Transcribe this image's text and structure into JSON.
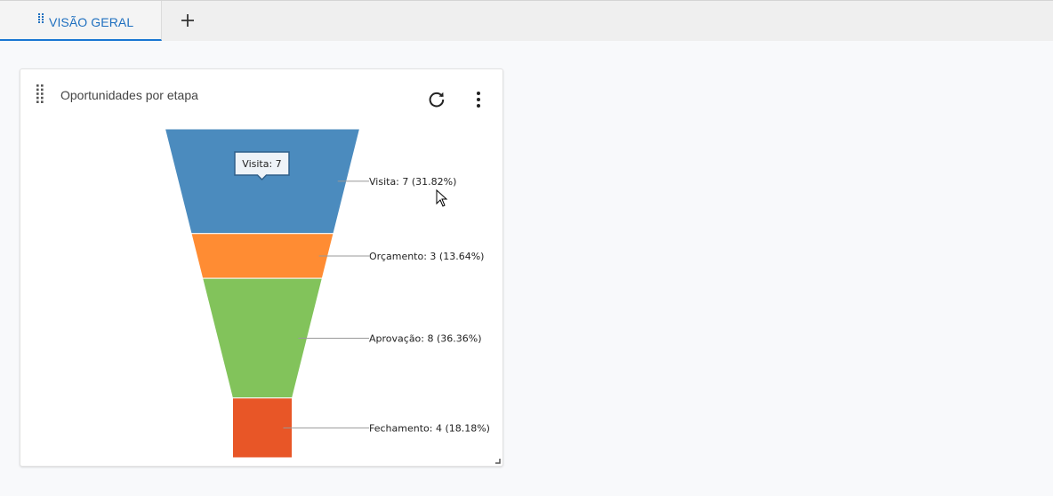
{
  "tabs": {
    "active_label": "VISÃO GERAL",
    "accent_color": "#1976d2",
    "add_icon": "plus-icon"
  },
  "widget": {
    "title": "Oportunidades por etapa",
    "refresh_icon": "refresh-icon",
    "menu_icon": "more-vertical-icon"
  },
  "chart_data": {
    "type": "funnel",
    "categories": [
      "Visita",
      "Orçamento",
      "Aprovação",
      "Fechamento"
    ],
    "values": [
      7,
      3,
      8,
      4
    ],
    "percents": [
      "31.82%",
      "13.64%",
      "36.36%",
      "18.18%"
    ],
    "labels": [
      "Visita: 7 (31.82%)",
      "Orçamento: 3 (13.64%)",
      "Aprovação: 8 (36.36%)",
      "Fechamento: 4 (18.18%)"
    ],
    "colors": [
      "#4b8bbe",
      "#ff8c33",
      "#82c35b",
      "#e85627"
    ],
    "tooltip": "Visita: 7"
  }
}
